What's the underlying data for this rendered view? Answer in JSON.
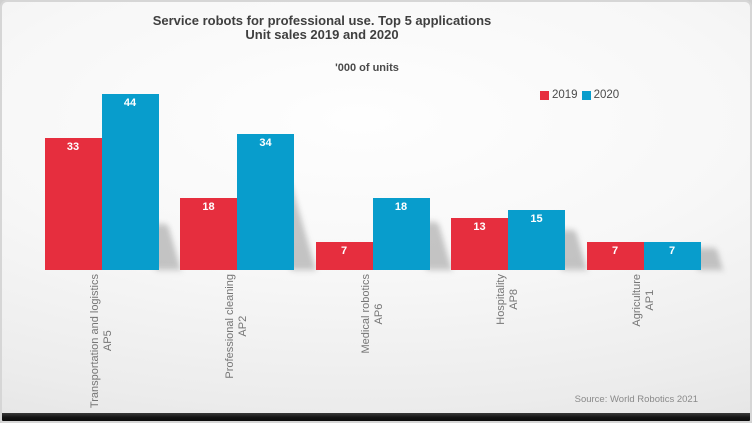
{
  "chart_data": {
    "type": "bar",
    "title": "Service robots for professional use. Top 5 applications",
    "subtitle": "Unit sales 2019 and 2020",
    "units_label": "'000 of units",
    "categories": [
      "Transportation and logistics",
      "Professional cleaning",
      "Medical robotics",
      "Hospitality",
      "Agriculture"
    ],
    "category_codes": [
      "AP5",
      "AP2",
      "AP6",
      "AP8",
      "AP1"
    ],
    "series": [
      {
        "name": "2019",
        "color": "#e62e3e",
        "values": [
          33,
          18,
          7,
          13,
          7
        ]
      },
      {
        "name": "2020",
        "color": "#089dcc",
        "values": [
          44,
          34,
          18,
          15,
          7
        ]
      }
    ],
    "value_labels": "inside-top",
    "grid": false,
    "axis_line": false,
    "legend_position": "top-right",
    "ylim": [
      0,
      44
    ],
    "source": "Source: World Robotics 2021"
  },
  "colors": {
    "series_2019": "#e62e3e",
    "series_2020": "#089dcc",
    "title_text": "#3f3f3f",
    "category_text": "#757575",
    "source_text": "#8a8a8a"
  }
}
